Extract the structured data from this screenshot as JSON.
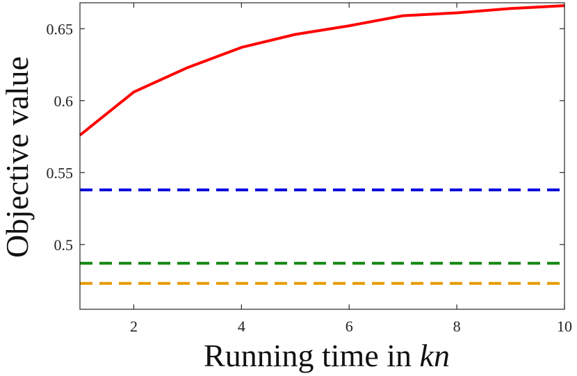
{
  "chart_data": {
    "type": "line",
    "title": "",
    "xlabel": "Running time in ",
    "xlabel_italic": "kn",
    "ylabel": "Objective value",
    "xlim": [
      1,
      10
    ],
    "ylim": [
      0.455,
      0.668
    ],
    "xticks": [
      2,
      4,
      6,
      8,
      10
    ],
    "xtick_labels": [
      "2",
      "4",
      "6",
      "8",
      "10"
    ],
    "yticks": [
      0.5,
      0.55,
      0.6,
      0.65
    ],
    "ytick_labels": [
      "0.5",
      "0.55",
      "0.6",
      "0.65"
    ],
    "grid": false,
    "legend": "none",
    "series": [
      {
        "style": "solid",
        "color": "#ff0000",
        "x": [
          1,
          2,
          3,
          4,
          5,
          6,
          7,
          8,
          9,
          10
        ],
        "y": [
          0.576,
          0.606,
          0.623,
          0.637,
          0.646,
          0.652,
          0.659,
          0.661,
          0.664,
          0.666
        ]
      },
      {
        "style": "dashed",
        "color": "#0000dd",
        "x": [
          1,
          10
        ],
        "y": [
          0.538,
          0.538
        ]
      },
      {
        "style": "dashed",
        "color": "#118811",
        "x": [
          1,
          10
        ],
        "y": [
          0.487,
          0.487
        ]
      },
      {
        "style": "dashed",
        "color": "#e69a00",
        "x": [
          1,
          10
        ],
        "y": [
          0.473,
          0.473
        ]
      }
    ]
  }
}
